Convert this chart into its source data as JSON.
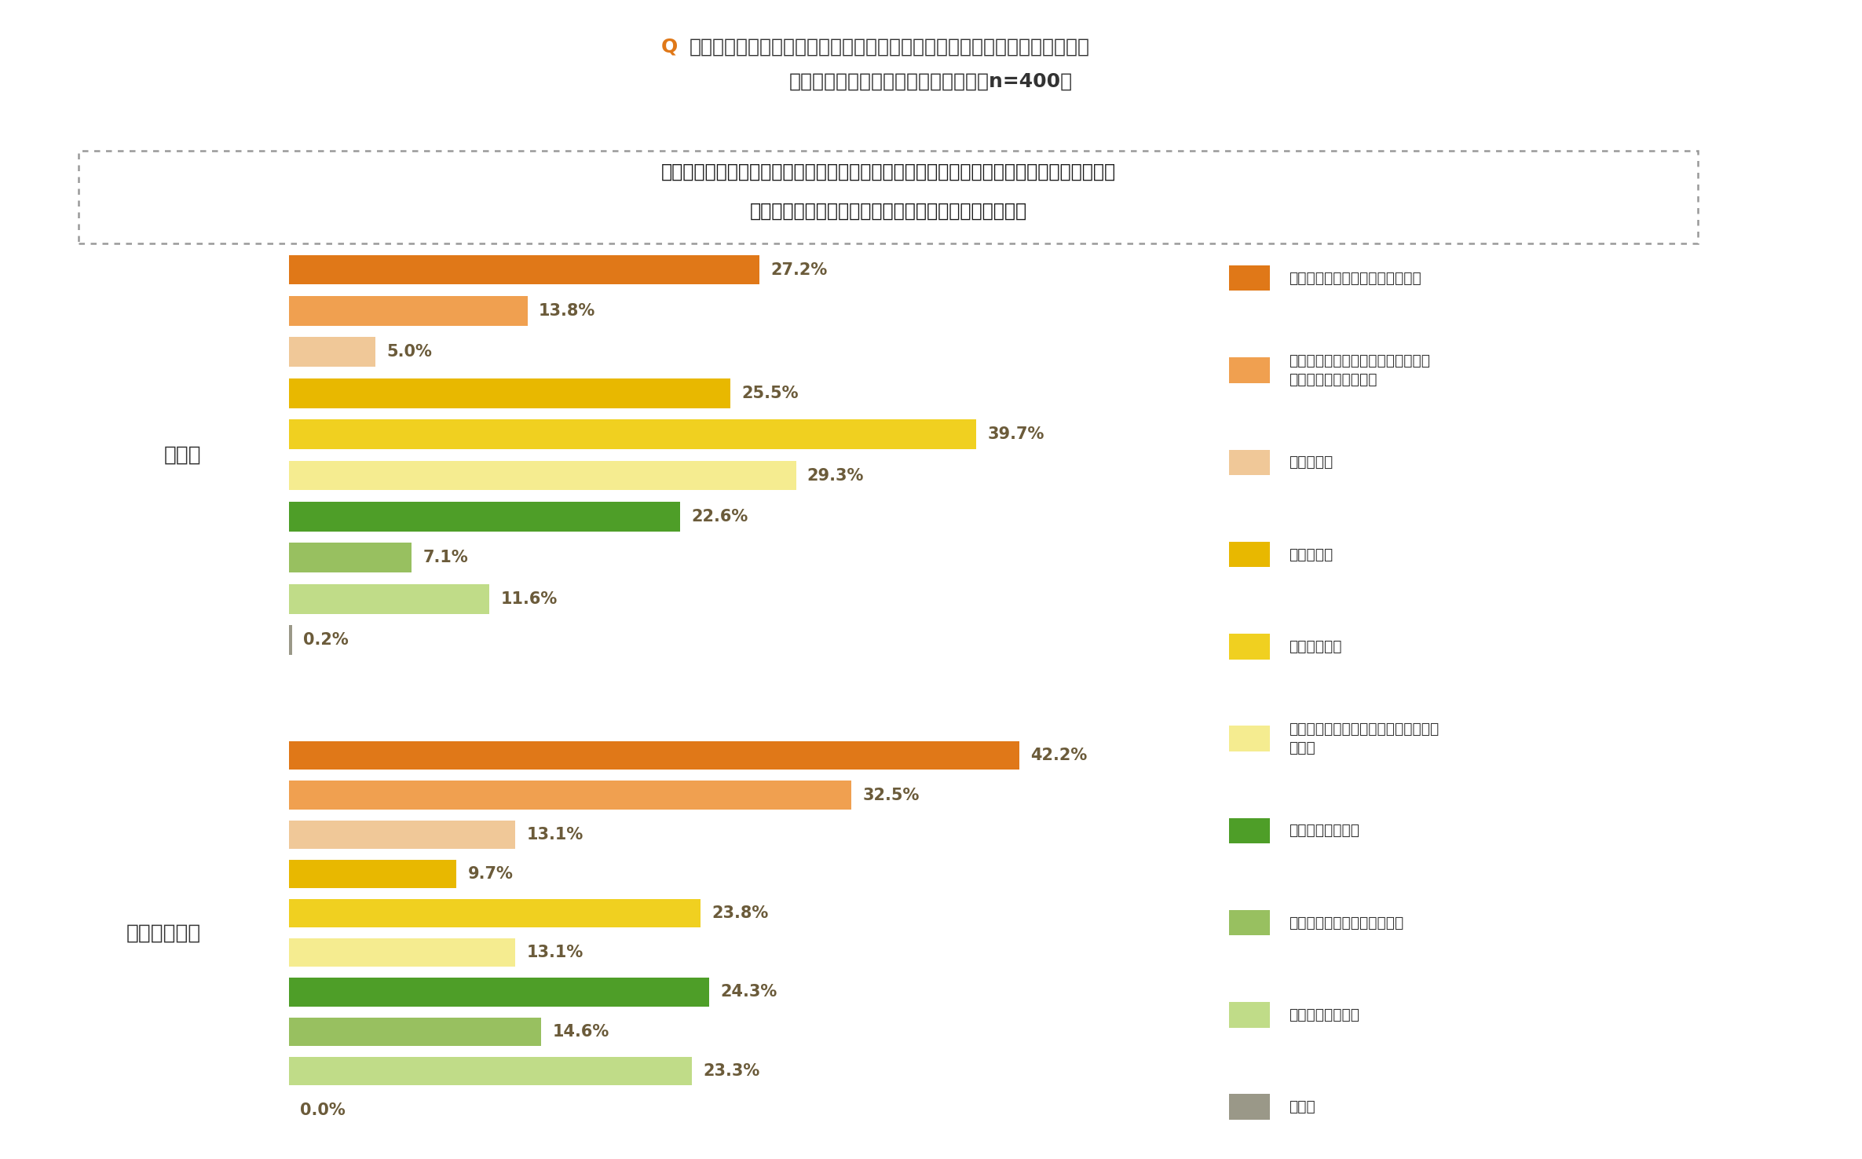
{
  "title_q": "Q",
  "title_line1": "「実際に感謝の言葉を伝えるなど行動している」と回答した日の行動として",
  "title_line2": "あてはまるものをお答えください。（n=400）",
  "subtitle_line1": "勤労感謝の日は、言葉で伝えるなどお金をかけずに感謝や労いの気持ちを伝える人が多く、",
  "subtitle_line2": "母の日はお花や飲食物などのプレゼントを贈る人が多い",
  "group_haha": "母の日",
  "group_kinro": "勤労感謝の日",
  "categories": [
    "感謝や労いの言葉を口頭で伝える",
    "感謝や労いの言葉をメールなどのモ\nバイルツールで伝える",
    "手紙を贈る",
    "お花を贈る",
    "飲食物を贈る",
    "手紙・お花・飲食物以外のプレゼント\nを贈る",
    "一緒に食事をする",
    "一緒におでかけや旅行をする",
    "何かをしてあげる",
    "その他"
  ],
  "values_haha": [
    27.2,
    13.8,
    5.0,
    25.5,
    39.7,
    29.3,
    22.6,
    7.1,
    11.6,
    0.2
  ],
  "values_kinro": [
    42.2,
    32.5,
    13.1,
    9.7,
    23.8,
    13.1,
    24.3,
    14.6,
    23.3,
    0.0
  ],
  "colors": [
    "#E07818",
    "#F0A050",
    "#F0C898",
    "#E8B800",
    "#F0D020",
    "#F5EC90",
    "#4E9E28",
    "#98C060",
    "#C0DC88",
    "#9A9888"
  ],
  "background_color": "#FFFFFF",
  "xlim_max": 50,
  "label_color": "#6B5B3A",
  "title_color": "#333333",
  "q_color": "#E07818"
}
